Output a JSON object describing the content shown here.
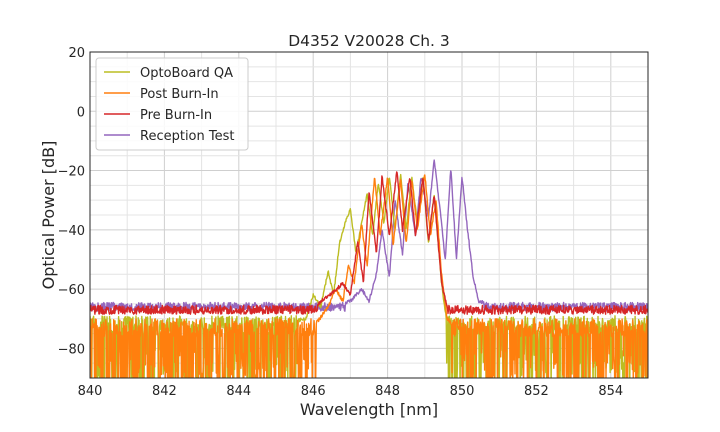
{
  "chart_data": {
    "type": "line",
    "title": "D4352 V20028 Ch. 3",
    "xlabel": "Wavelength [nm]",
    "ylabel": "Optical Power [dB]",
    "xlim": [
      840,
      855
    ],
    "ylim": [
      -90,
      20
    ],
    "xticks": [
      840,
      842,
      844,
      846,
      848,
      850,
      852,
      854
    ],
    "yticks": [
      20,
      0,
      -20,
      -40,
      -60,
      -80
    ],
    "ytick_labels": [
      "20",
      "0",
      "−20",
      "−40",
      "−60",
      "−80"
    ],
    "grid": true,
    "legend_position": "top-left",
    "series": [
      {
        "name": "OptoBoard QA",
        "color": "#bcbd22",
        "noise_floor": -72,
        "x": [
          840,
          845,
          845.8,
          846.0,
          846.2,
          846.4,
          846.55,
          846.7,
          846.85,
          847.0,
          847.15,
          847.3,
          847.45,
          847.6,
          847.75,
          847.9,
          848.05,
          848.2,
          848.35,
          848.5,
          848.65,
          848.8,
          848.95,
          849.1,
          849.25,
          849.45,
          849.6,
          849.8,
          850.1,
          855
        ],
        "y": [
          -72,
          -72,
          -70,
          -62,
          -66,
          -54,
          -62,
          -45,
          -38,
          -33,
          -48,
          -38,
          -28,
          -42,
          -24,
          -38,
          -22,
          -40,
          -21,
          -40,
          -22,
          -38,
          -22,
          -45,
          -28,
          -58,
          -72,
          -72,
          -72,
          -72
        ]
      },
      {
        "name": "Post Burn-In",
        "color": "#ff7f0e",
        "noise_floor": -73,
        "x": [
          840,
          846.0,
          846.4,
          846.6,
          846.8,
          846.95,
          847.1,
          847.3,
          847.45,
          847.65,
          847.8,
          848.0,
          848.15,
          848.35,
          848.5,
          848.65,
          848.8,
          849.0,
          849.15,
          849.3,
          849.45,
          849.6,
          849.8,
          850.0,
          855
        ],
        "y": [
          -73,
          -73,
          -66,
          -60,
          -64,
          -52,
          -58,
          -38,
          -52,
          -22,
          -42,
          -22,
          -45,
          -23,
          -45,
          -23,
          -40,
          -21,
          -42,
          -30,
          -55,
          -70,
          -73,
          -73,
          -73
        ]
      },
      {
        "name": "Pre Burn-In",
        "color": "#d62728",
        "noise_floor": -67,
        "x": [
          840,
          846.0,
          846.3,
          846.55,
          846.8,
          847.0,
          847.2,
          847.35,
          847.5,
          847.7,
          847.85,
          848.05,
          848.25,
          848.4,
          848.6,
          848.75,
          848.95,
          849.1,
          849.25,
          849.45,
          849.6,
          849.8,
          850.2,
          855
        ],
        "y": [
          -67,
          -67,
          -63,
          -61,
          -58,
          -62,
          -44,
          -58,
          -27,
          -48,
          -22,
          -42,
          -20,
          -40,
          -22,
          -42,
          -22,
          -44,
          -28,
          -58,
          -66,
          -67,
          -67,
          -67
        ]
      },
      {
        "name": "Reception Test",
        "color": "#9467bd",
        "noise_floor": -66,
        "x": [
          840,
          845.5,
          846.5,
          847.0,
          847.3,
          847.5,
          847.7,
          847.85,
          848.05,
          848.2,
          848.4,
          848.55,
          848.75,
          848.9,
          849.1,
          849.25,
          849.4,
          849.55,
          849.7,
          849.85,
          850.0,
          850.15,
          850.3,
          850.45,
          851.0,
          855
        ],
        "y": [
          -66,
          -66,
          -66,
          -64,
          -60,
          -64,
          -55,
          -40,
          -56,
          -30,
          -48,
          -24,
          -42,
          -22,
          -36,
          -16,
          -32,
          -50,
          -19,
          -50,
          -22,
          -40,
          -56,
          -64,
          -66,
          -66
        ]
      }
    ]
  }
}
